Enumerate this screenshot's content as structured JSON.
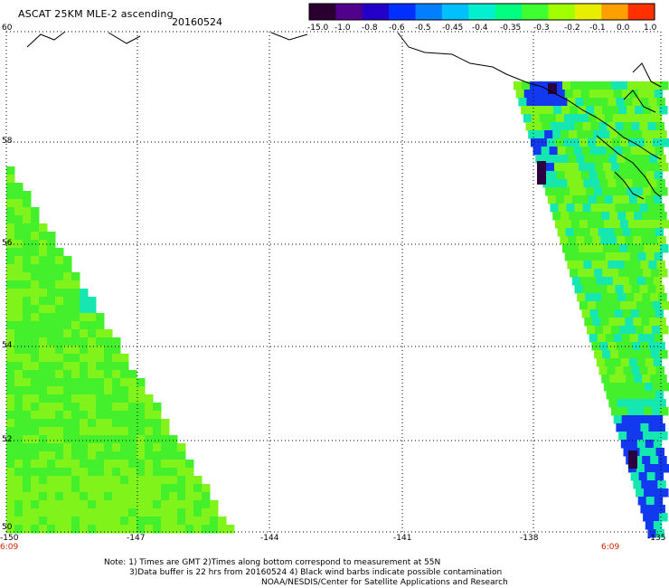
{
  "header": {
    "title": "ASCAT 25KM MLE-2 ascending",
    "date": "20160524"
  },
  "colorbar": {
    "labels": [
      "-15.0",
      "-1.0",
      "-0.8",
      "-0.6",
      "-0.5",
      "-0.45",
      "-0.4",
      "-0.35",
      "-0.3",
      "-0.2",
      "-0.1",
      "0.0",
      "1.0"
    ],
    "colors": [
      "#2a0030",
      "#50008a",
      "#2300c8",
      "#0030ff",
      "#0080ff",
      "#00c0ff",
      "#00f0d0",
      "#00ff80",
      "#40ff30",
      "#a0ff00",
      "#e8ee00",
      "#ffa000",
      "#ff3000"
    ]
  },
  "map": {
    "lat_ticks": [
      "60",
      "58",
      "56",
      "54",
      "52",
      "50"
    ],
    "lon_ticks": [
      "-150",
      "-147",
      "-144",
      "-141",
      "-138",
      "-135"
    ],
    "time_labels": [
      "6:09",
      "6:09"
    ],
    "colors": {
      "green": "#44f02c",
      "lime": "#80f41a",
      "cyan": "#16e6b0",
      "blue": "#1238f0",
      "navy": "#2a0040",
      "grid": "#000000"
    }
  },
  "footer": {
    "note1": "Note: 1) Times are GMT 2)Times along bottom correspond to measurement at 55N",
    "note2": "3)Data buffer is 22 hrs from 20160524 4) Black wind barbs indicate possible contamination",
    "note3": "NOAA/NESDIS/Center for Satellite Applications and Research"
  }
}
